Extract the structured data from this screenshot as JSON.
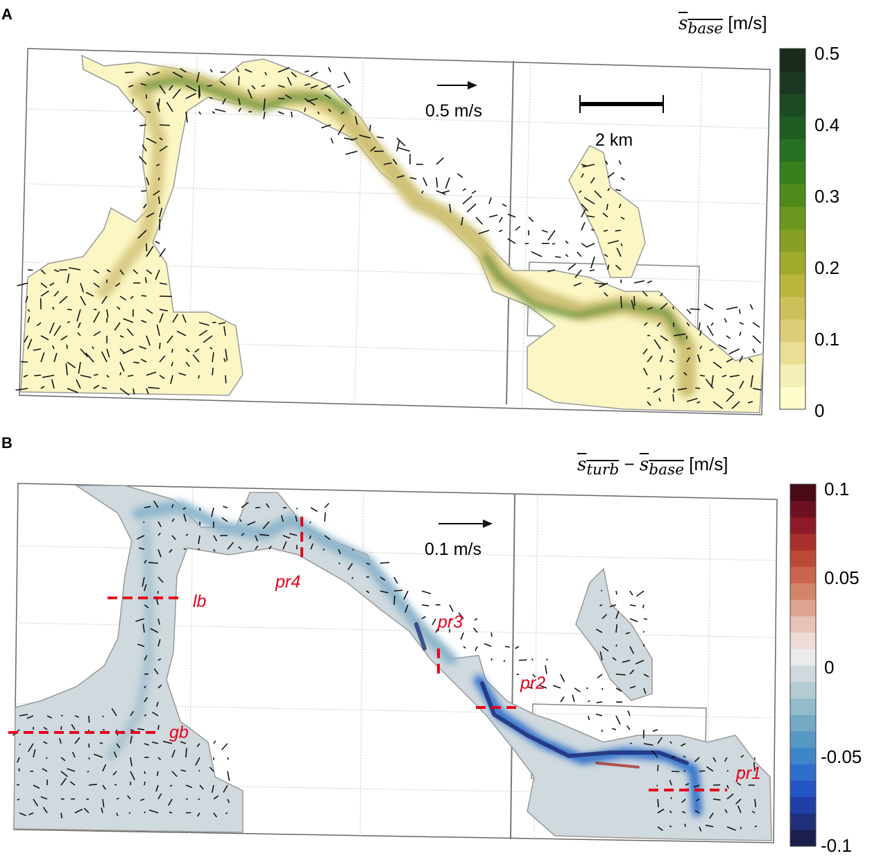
{
  "chart_data": [
    {
      "type": "heatmap",
      "panel": "A",
      "colorbar": {
        "label_main": "s",
        "label_sub": "base",
        "unit": "[m/s]",
        "ticks": [
          "0.5",
          "0.4",
          "0.3",
          "0.2",
          "0.1",
          "0"
        ],
        "range": [
          0,
          0.5
        ],
        "colors": [
          "#fffdcb",
          "#f4efb6",
          "#eadf95",
          "#ddcd79",
          "#cdbf5a",
          "#b9b53d",
          "#a0aa2a",
          "#86a023",
          "#6b971f",
          "#4f8b1c",
          "#37801e",
          "#257121",
          "#1d5d22",
          "#1c4a21",
          "#1b3720",
          "#1a2a1c"
        ]
      },
      "vector_scale_label": "0.5 m/s",
      "scale_bar_label": "2 km"
    },
    {
      "type": "heatmap",
      "panel": "B",
      "colorbar": {
        "label_main_1": "s",
        "label_sub_1": "turb",
        "minus": "−",
        "label_main_2": "s",
        "label_sub_2": "base",
        "unit": "[m/s]",
        "ticks": [
          "0.1",
          "0.05",
          "0",
          "-0.05",
          "-0.1"
        ],
        "range": [
          -0.1,
          0.1
        ],
        "colors": [
          "#1a1f4d",
          "#1f2f7a",
          "#2040a6",
          "#2455c4",
          "#2f6fcb",
          "#3f86c8",
          "#5899c4",
          "#74aac5",
          "#93bccb",
          "#b3ccd4",
          "#d0d9dd",
          "#ebebeb",
          "#eedcd6",
          "#e7c2b5",
          "#dea48f",
          "#d38469",
          "#c8654b",
          "#bb4a35",
          "#a9302c",
          "#8c1b27",
          "#6d1022",
          "#4a0a18"
        ]
      },
      "vector_scale_label": "0.1 m/s",
      "sections": [
        "lb",
        "pr4",
        "pr3",
        "pr2",
        "gb",
        "pr1"
      ]
    }
  ],
  "panel_labels": [
    "A",
    "B"
  ]
}
